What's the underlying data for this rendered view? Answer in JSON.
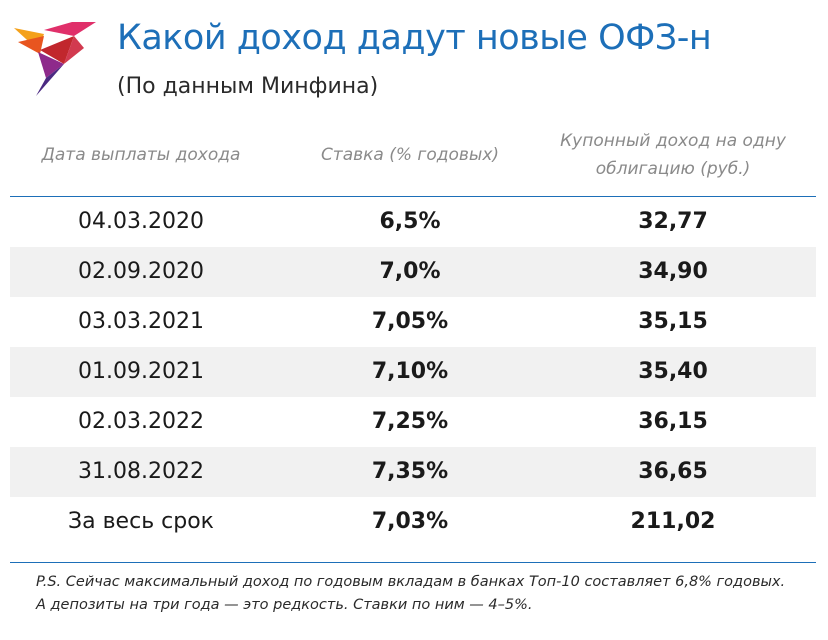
{
  "header": {
    "title": "Какой доход дадут новые ОФЗ-н",
    "subtitle": "(По данным Минфина)",
    "logo_icon": "bird-logo-icon"
  },
  "table": {
    "columns": [
      "Дата выплаты дохода",
      "Ставка (% годовых)",
      "Купонный доход на одну облигацию (руб.)"
    ],
    "column_coupon_lines": [
      "Купонный доход на одну",
      "облигацию (руб.)"
    ],
    "rows": [
      {
        "date": "04.03.2020",
        "rate": "6,5%",
        "coupon": "32,77"
      },
      {
        "date": "02.09.2020",
        "rate": "7,0%",
        "coupon": "34,90"
      },
      {
        "date": "03.03.2021",
        "rate": "7,05%",
        "coupon": "35,15"
      },
      {
        "date": "01.09.2021",
        "rate": "7,10%",
        "coupon": "35,40"
      },
      {
        "date": "02.03.2022",
        "rate": "7,25%",
        "coupon": "36,15"
      },
      {
        "date": "31.08.2022",
        "rate": "7,35%",
        "coupon": "36,65"
      },
      {
        "date": "За весь срок",
        "rate": "7,03%",
        "coupon": "211,02"
      }
    ]
  },
  "footnote": {
    "line1": "P.S. Сейчас максимальный доход по годовым вкладам в банках Топ-10 составляет 6,8% годовых.",
    "line2": "А депозиты на три года — это редкость. Ставки по ним — 4–5%."
  },
  "colors": {
    "accent": "#1d6fb8",
    "row_shade": "#f1f1f1",
    "header_text": "#8a8a8a"
  }
}
